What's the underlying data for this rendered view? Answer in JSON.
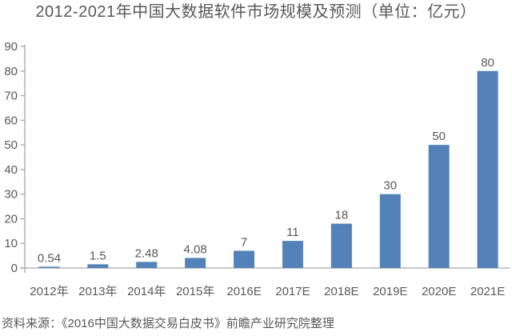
{
  "chart_data": {
    "type": "bar",
    "title": "2012-2021年中国大数据软件市场规模及预测（单位：亿元）",
    "categories": [
      "2012年",
      "2013年",
      "2014年",
      "2015年",
      "2016E",
      "2017E",
      "2018E",
      "2019E",
      "2020E",
      "2021E"
    ],
    "values": [
      0.54,
      1.5,
      2.48,
      4.08,
      7,
      11,
      18,
      30,
      50,
      80
    ],
    "value_labels": [
      "0.54",
      "1.5",
      "2.48",
      "4.08",
      "7",
      "11",
      "18",
      "30",
      "50",
      "80"
    ],
    "xlabel": "",
    "ylabel": "",
    "ylim": [
      0,
      90
    ],
    "ytick_step": 10,
    "ytick_labels": [
      "0",
      "10",
      "20",
      "30",
      "40",
      "50",
      "60",
      "70",
      "80",
      "90"
    ],
    "grid": false,
    "legend_position": "none",
    "bar_color": "#5282B8",
    "text_color": "#595959",
    "axis_color": "#A6A6A6"
  },
  "source_note": "资料来源：《2016中国大数据交易白皮书》前瞻产业研究院整理"
}
